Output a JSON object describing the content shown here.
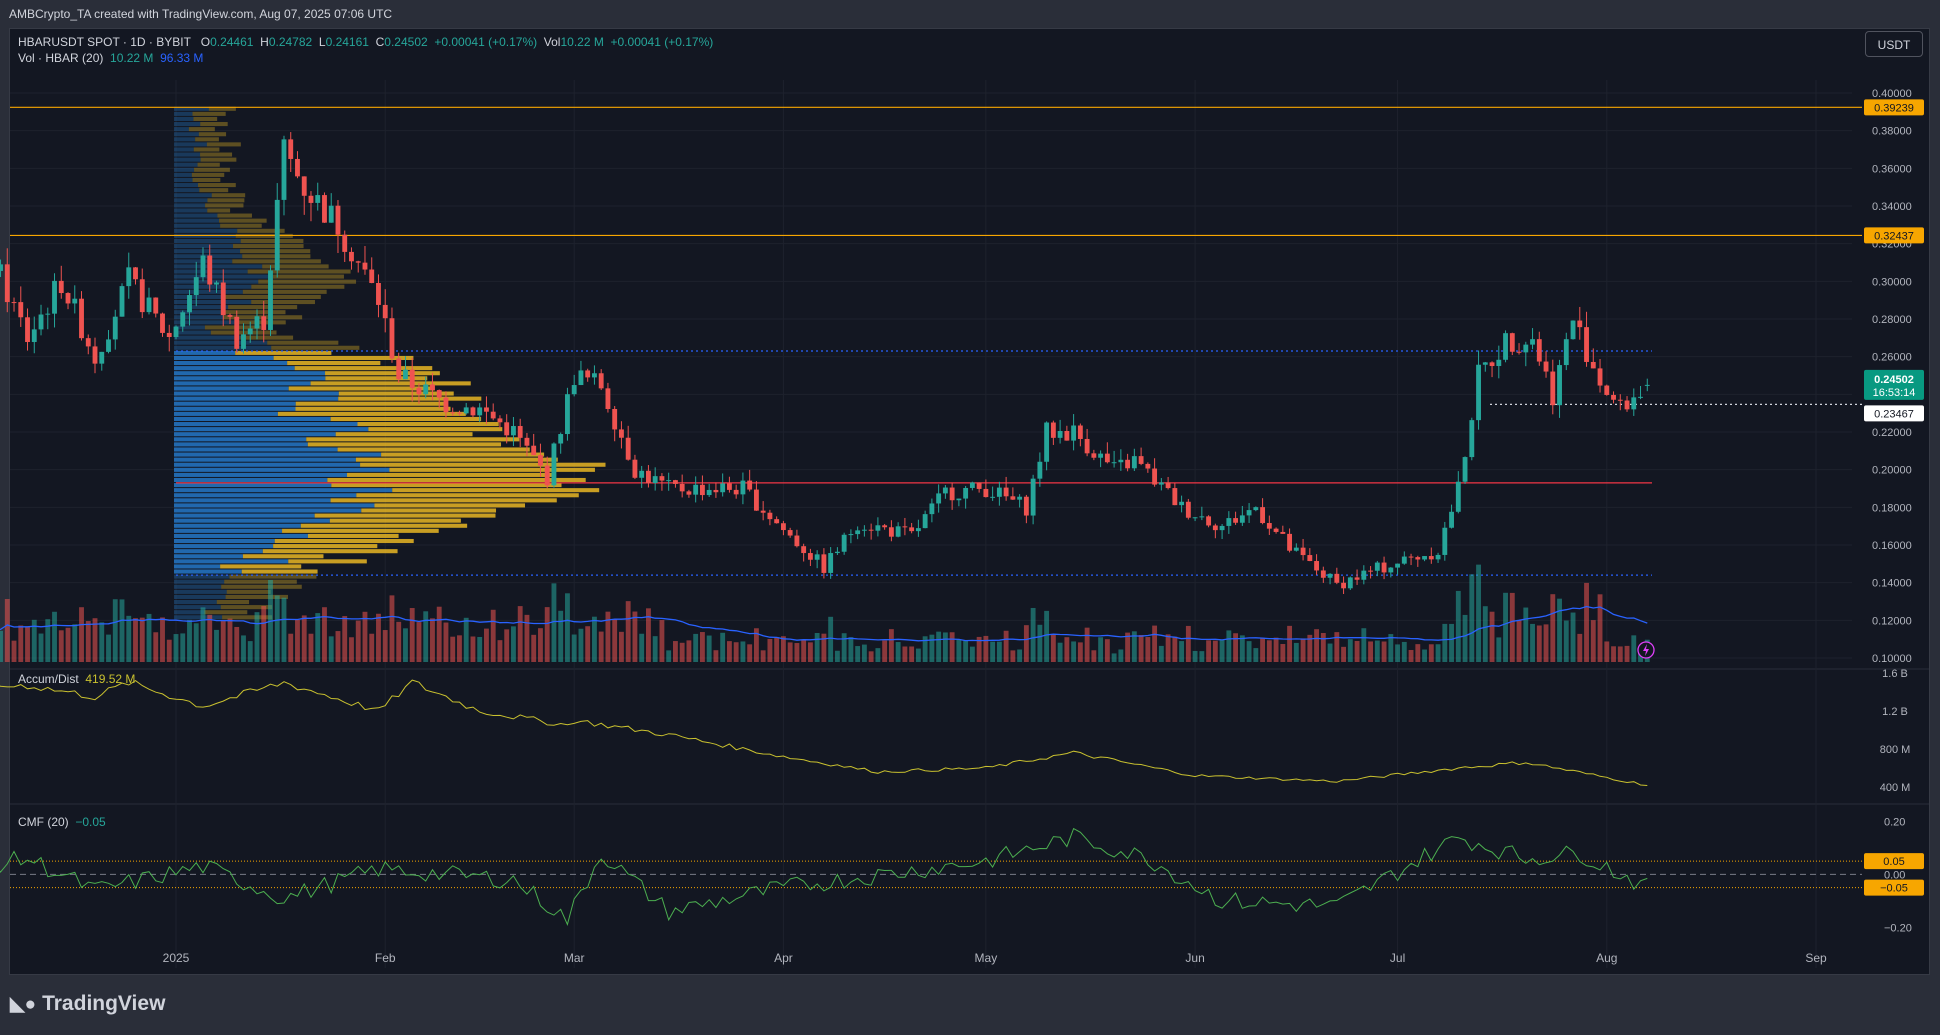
{
  "attribution": "AMBCrypto_TA created with TradingView.com, Aug 07, 2025 07:06 UTC",
  "currency_button": "USDT",
  "brand": "TradingView",
  "legend": {
    "symbol": "HBARUSDT SPOT · 1D · BYBIT",
    "o_label": "O",
    "o": "0.24461",
    "h_label": "H",
    "h": "0.24782",
    "l_label": "L",
    "l": "0.24161",
    "c_label": "C",
    "c": "0.24502",
    "change": "+0.00041 (+0.17%)",
    "vol_label": "Vol",
    "vol": "10.22 M",
    "vol_change": "+0.00041 (+0.17%)",
    "vol_study": "Vol · HBAR (20)",
    "vol_value": "10.22 M",
    "vol_ma": "96.33 M",
    "ad_label": "Accum/Dist",
    "ad_value": "419.52 M",
    "cmf_label": "CMF (20)",
    "cmf_value": "−0.05"
  },
  "price_badges": {
    "r1": "0.39239",
    "r2": "0.32437",
    "last": "0.24502",
    "countdown": "16:53:14",
    "low_line": "0.23467"
  },
  "colors": {
    "up": "#26a69a",
    "down": "#ef5350",
    "resistance": "#f7a600",
    "support_red": "#f23645",
    "value_area": "#2962ff",
    "ad": "#c9c12f",
    "cmf": "#4caf50",
    "vp_blue": "#2477c7",
    "vp_gold": "#e9b623"
  },
  "chart_data": [
    {
      "type": "candlestick",
      "name": "HBARUSDT",
      "ylim": [
        0.1,
        0.4
      ],
      "y_ticks": [
        "0.40000",
        "0.38000",
        "0.36000",
        "0.34000",
        "0.32000",
        "0.30000",
        "0.28000",
        "0.26000",
        "0.24000",
        "0.22000",
        "0.20000",
        "0.18000",
        "0.16000",
        "0.14000",
        "0.12000",
        "0.10000"
      ],
      "x_ticks": [
        "2025",
        "Feb",
        "Mar",
        "Apr",
        "May",
        "Jun",
        "Jul",
        "Aug",
        "Sep"
      ],
      "horizontal_lines": [
        {
          "value": 0.39239,
          "style": "solid",
          "color": "resistance"
        },
        {
          "value": 0.32437,
          "style": "solid",
          "color": "resistance"
        },
        {
          "value": 0.193,
          "style": "solid",
          "color": "support_red"
        },
        {
          "value": 0.263,
          "style": "dotted",
          "color": "value_area"
        },
        {
          "value": 0.144,
          "style": "dotted",
          "color": "value_area"
        },
        {
          "value": 0.23467,
          "style": "dotted",
          "color": "white"
        }
      ],
      "close_anchors": [
        [
          "2024-12-01",
          0.33
        ],
        [
          "2024-12-05",
          0.31
        ],
        [
          "2024-12-10",
          0.27
        ],
        [
          "2024-12-15",
          0.3
        ],
        [
          "2024-12-20",
          0.26
        ],
        [
          "2024-12-25",
          0.3
        ],
        [
          "2024-12-31",
          0.27
        ],
        [
          "2025-01-05",
          0.31
        ],
        [
          "2025-01-10",
          0.27
        ],
        [
          "2025-01-14",
          0.28
        ],
        [
          "2025-01-17",
          0.37
        ],
        [
          "2025-01-20",
          0.35
        ],
        [
          "2025-01-25",
          0.33
        ],
        [
          "2025-01-31",
          0.29
        ],
        [
          "2025-02-03",
          0.25
        ],
        [
          "2025-02-10",
          0.235
        ],
        [
          "2025-02-15",
          0.232
        ],
        [
          "2025-02-20",
          0.22
        ],
        [
          "2025-02-25",
          0.196
        ],
        [
          "2025-03-01",
          0.25
        ],
        [
          "2025-03-05",
          0.245
        ],
        [
          "2025-03-10",
          0.2
        ],
        [
          "2025-03-15",
          0.19
        ],
        [
          "2025-03-20",
          0.19
        ],
        [
          "2025-03-26",
          0.19
        ],
        [
          "2025-04-01",
          0.168
        ],
        [
          "2025-04-07",
          0.148
        ],
        [
          "2025-04-12",
          0.172
        ],
        [
          "2025-04-20",
          0.165
        ],
        [
          "2025-04-25",
          0.188
        ],
        [
          "2025-05-01",
          0.19
        ],
        [
          "2025-05-07",
          0.18
        ],
        [
          "2025-05-10",
          0.22
        ],
        [
          "2025-05-14",
          0.22
        ],
        [
          "2025-05-20",
          0.2
        ],
        [
          "2025-05-23",
          0.205
        ],
        [
          "2025-05-30",
          0.18
        ],
        [
          "2025-06-05",
          0.17
        ],
        [
          "2025-06-10",
          0.18
        ],
        [
          "2025-06-15",
          0.158
        ],
        [
          "2025-06-22",
          0.139
        ],
        [
          "2025-06-27",
          0.146
        ],
        [
          "2025-07-03",
          0.153
        ],
        [
          "2025-07-07",
          0.157
        ],
        [
          "2025-07-10",
          0.19
        ],
        [
          "2025-07-13",
          0.25
        ],
        [
          "2025-07-17",
          0.268
        ],
        [
          "2025-07-21",
          0.27
        ],
        [
          "2025-07-24",
          0.24
        ],
        [
          "2025-07-27",
          0.28
        ],
        [
          "2025-07-31",
          0.247
        ],
        [
          "2025-08-03",
          0.232
        ],
        [
          "2025-08-07",
          0.24502
        ]
      ],
      "volume": {
        "unit": "M",
        "ma_length": 20,
        "last": 10.22,
        "ma_last": 96.33
      },
      "volume_profile": {
        "value_area_high": 0.263,
        "value_area_low": 0.144,
        "poc": 0.193
      }
    },
    {
      "type": "line",
      "name": "Accum/Dist",
      "ylim": [
        400000000,
        1600000000
      ],
      "y_ticks": [
        "1.6 B",
        "1.2 B",
        "800 M",
        "400 M"
      ],
      "anchors": [
        [
          "2024-12-01",
          1450000000.0
        ],
        [
          "2024-12-10",
          1470000000.0
        ],
        [
          "2024-12-20",
          1350000000.0
        ],
        [
          "2024-12-25",
          1500000000.0
        ],
        [
          "2025-01-05",
          1250000000.0
        ],
        [
          "2025-01-17",
          1500000000.0
        ],
        [
          "2025-01-31",
          1200000000.0
        ],
        [
          "2025-02-05",
          1500000000.0
        ],
        [
          "2025-02-15",
          1200000000.0
        ],
        [
          "2025-02-28",
          1050000000.0
        ],
        [
          "2025-03-01",
          1100000000.0
        ],
        [
          "2025-03-15",
          950000000.0
        ],
        [
          "2025-04-01",
          720000000.0
        ],
        [
          "2025-04-15",
          560000000.0
        ],
        [
          "2025-05-01",
          600000000.0
        ],
        [
          "2025-05-14",
          760000000.0
        ],
        [
          "2025-06-01",
          520000000.0
        ],
        [
          "2025-06-22",
          460000000.0
        ],
        [
          "2025-07-10",
          600000000.0
        ],
        [
          "2025-07-20",
          660000000.0
        ],
        [
          "2025-08-07",
          419520000.0
        ]
      ]
    },
    {
      "type": "line",
      "name": "CMF (20)",
      "ylim": [
        -0.3,
        0.25
      ],
      "y_ticks": [
        "0.20",
        "0.00",
        "−0.20"
      ],
      "levels": [
        0.05,
        0.0,
        -0.05
      ],
      "level_badges": [
        "0.05",
        "−0.05"
      ],
      "anchors": [
        [
          "2024-12-01",
          0.02
        ],
        [
          "2024-12-10",
          0.06
        ],
        [
          "2024-12-20",
          -0.06
        ],
        [
          "2025-01-05",
          0.03
        ],
        [
          "2025-01-17",
          -0.09
        ],
        [
          "2025-01-31",
          0.02
        ],
        [
          "2025-02-20",
          -0.02
        ],
        [
          "2025-02-28",
          -0.17
        ],
        [
          "2025-03-05",
          0.08
        ],
        [
          "2025-03-15",
          -0.14
        ],
        [
          "2025-04-01",
          -0.05
        ],
        [
          "2025-05-01",
          0.05
        ],
        [
          "2025-05-14",
          0.14
        ],
        [
          "2025-05-25",
          0.06
        ],
        [
          "2025-06-05",
          -0.1
        ],
        [
          "2025-06-22",
          -0.12
        ],
        [
          "2025-07-10",
          0.14
        ],
        [
          "2025-07-20",
          0.06
        ],
        [
          "2025-07-28",
          0.08
        ],
        [
          "2025-08-07",
          -0.05
        ]
      ]
    }
  ]
}
